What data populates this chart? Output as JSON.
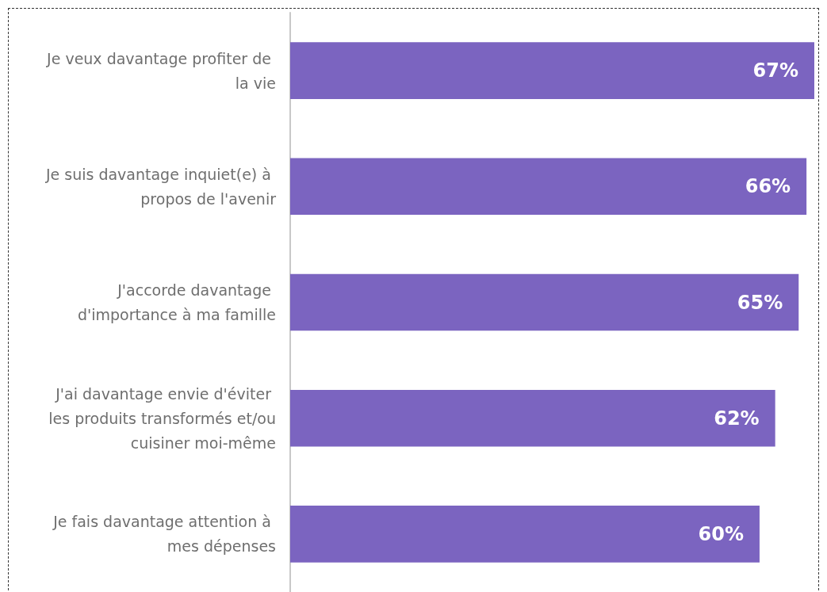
{
  "chart_data": {
    "type": "bar",
    "orientation": "horizontal",
    "categories": [
      "Je veux davantage profiter de la vie",
      "Je suis davantage inquiet(e) à propos de l'avenir",
      "J'accorde davantage d'importance à ma famille",
      "J'ai davantage envie d'éviter les produits transformés et/ou cuisiner moi-même",
      "Je fais davantage attention à mes dépenses"
    ],
    "values": [
      67,
      66,
      65,
      62,
      60
    ],
    "value_labels": [
      "67%",
      "66%",
      "65%",
      "62%",
      "60%"
    ],
    "color": "#7b64c0"
  }
}
